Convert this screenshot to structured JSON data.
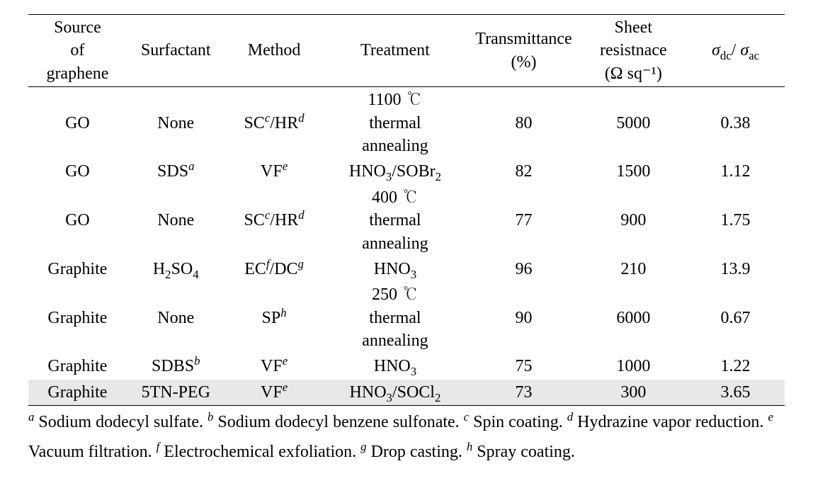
{
  "table": {
    "background_color": "#ffffff",
    "highlight_color": "#e8e8e8",
    "rule_color": "#000000",
    "font_family": "Times New Roman / Batang serif",
    "font_size_pt": 18,
    "columns": [
      {
        "key": "source",
        "label_lines": [
          "Source",
          "of",
          "graphene"
        ],
        "width_pct": 13
      },
      {
        "key": "surfactant",
        "label_lines": [
          "Surfactant"
        ],
        "width_pct": 13
      },
      {
        "key": "method",
        "label_lines": [
          "Method"
        ],
        "width_pct": 13
      },
      {
        "key": "treatment",
        "label_lines": [
          "Treatment"
        ],
        "width_pct": 19
      },
      {
        "key": "transmittance",
        "label_lines": [
          "Transmittance",
          "(%)"
        ],
        "width_pct": 15
      },
      {
        "key": "sheet_res",
        "label_lines": [
          "Sheet",
          "resistnace",
          "(Ω  sq⁻¹)"
        ],
        "width_pct": 14
      },
      {
        "key": "ratio",
        "label_html": "<span class=\"sigma\">σ</span><sub>dc</sub>/ <span class=\"sigma\">σ</span><sub>ac</sub>",
        "width_pct": 13
      }
    ],
    "rows": [
      {
        "highlight": false,
        "cells": {
          "source": "GO",
          "surfactant": "None",
          "method_html": "SC<sup class=\"fn-sup\">c</sup>/HR<sup class=\"fn-sup\">d</sup>",
          "treatment_html": "1100 ℃<br>thermal<br>annealing",
          "transmittance": "80",
          "sheet_res": "5000",
          "ratio": "0.38"
        }
      },
      {
        "highlight": false,
        "cells": {
          "source": "GO",
          "surfactant_html": "SDS<sup class=\"fn-sup\">a</sup>",
          "method_html": "VF<sup class=\"fn-sup\">e</sup>",
          "treatment_html": "HNO<sub>3</sub>/SOBr<sub>2</sub>",
          "transmittance": "82",
          "sheet_res": "1500",
          "ratio": "1.12"
        }
      },
      {
        "highlight": false,
        "cells": {
          "source": "GO",
          "surfactant": "None",
          "method_html": "SC<sup class=\"fn-sup\">c</sup>/HR<sup class=\"fn-sup\">d</sup>",
          "treatment_html": "400 ℃<br>thermal<br>annealing",
          "transmittance": "77",
          "sheet_res": "900",
          "ratio": "1.75"
        }
      },
      {
        "highlight": false,
        "cells": {
          "source": "Graphite",
          "surfactant_html": "H<sub>2</sub>SO<sub>4</sub>",
          "method_html": "EC<sup class=\"fn-sup\">f</sup>/DC<sup class=\"fn-sup\">g</sup>",
          "treatment_html": "HNO<sub>3</sub>",
          "transmittance": "96",
          "sheet_res": "210",
          "ratio": "13.9"
        }
      },
      {
        "highlight": false,
        "cells": {
          "source": "Graphite",
          "surfactant": "None",
          "method_html": "SP<sup class=\"fn-sup\">h</sup>",
          "treatment_html": "250 ℃<br>thermal<br>annealing",
          "transmittance": "90",
          "sheet_res": "6000",
          "ratio": "0.67"
        }
      },
      {
        "highlight": false,
        "cells": {
          "source": "Graphite",
          "surfactant_html": "SDBS<sup class=\"fn-sup\">b</sup>",
          "method_html": "VF<sup class=\"fn-sup\">e</sup>",
          "treatment_html": "HNO<sub>3</sub>",
          "transmittance": "75",
          "sheet_res": "1000",
          "ratio": "1.22"
        }
      },
      {
        "highlight": true,
        "cells": {
          "source": "Graphite",
          "surfactant": "5TN-PEG",
          "method_html": "VF<sup class=\"fn-sup\">e</sup>",
          "treatment_html": "HNO<sub>3</sub>/SOCl<sub>2</sub>",
          "transmittance": "73",
          "sheet_res": "300",
          "ratio": "3.65"
        }
      }
    ]
  },
  "footnotes_html": "<sup>a</sup> Sodium dodecyl sulfate. <sup>b</sup> Sodium dodecyl benzene sulfonate. <sup>c</sup> Spin coating. <sup>d</sup> Hydrazine vapor reduction. <sup>e</sup> Vacuum filtration. <sup>f</sup> Electrochemical exfoliation. <sup>g</sup> Drop casting. <sup>h</sup> Spray coating."
}
